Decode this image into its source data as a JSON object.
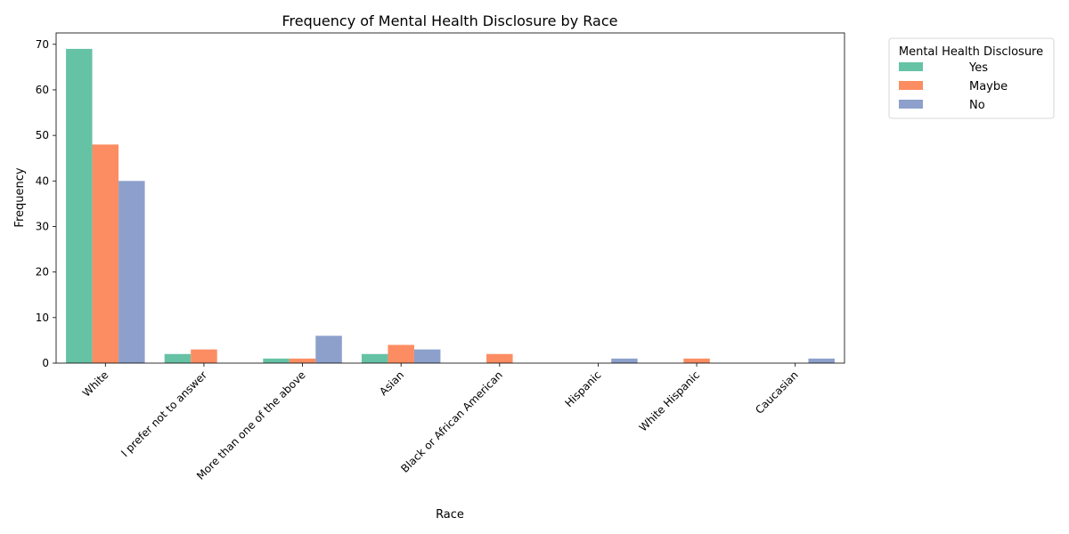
{
  "chart_data": {
    "type": "bar",
    "title": "Frequency of Mental Health Disclosure by Race",
    "xlabel": "Race",
    "ylabel": "Frequency",
    "ylim": [
      0,
      72.5
    ],
    "yticks": [
      0,
      10,
      20,
      30,
      40,
      50,
      60,
      70
    ],
    "grid": false,
    "legend": {
      "title": "Mental Health Disclosure",
      "placement": "outside top-right"
    },
    "categories": [
      "White",
      "I prefer not to answer",
      "More than one of the above",
      "Asian",
      "Black or African American",
      "Hispanic",
      "White Hispanic",
      "Caucasian"
    ],
    "series": [
      {
        "name": "Yes",
        "color": "#66c2a5",
        "values": [
          69,
          2,
          1,
          2,
          0,
          0,
          0,
          0
        ]
      },
      {
        "name": "Maybe",
        "color": "#fc8d62",
        "values": [
          48,
          3,
          1,
          4,
          2,
          0,
          1,
          0
        ]
      },
      {
        "name": "No",
        "color": "#8da0cb",
        "values": [
          40,
          0,
          6,
          3,
          0,
          1,
          0,
          1
        ]
      }
    ]
  }
}
